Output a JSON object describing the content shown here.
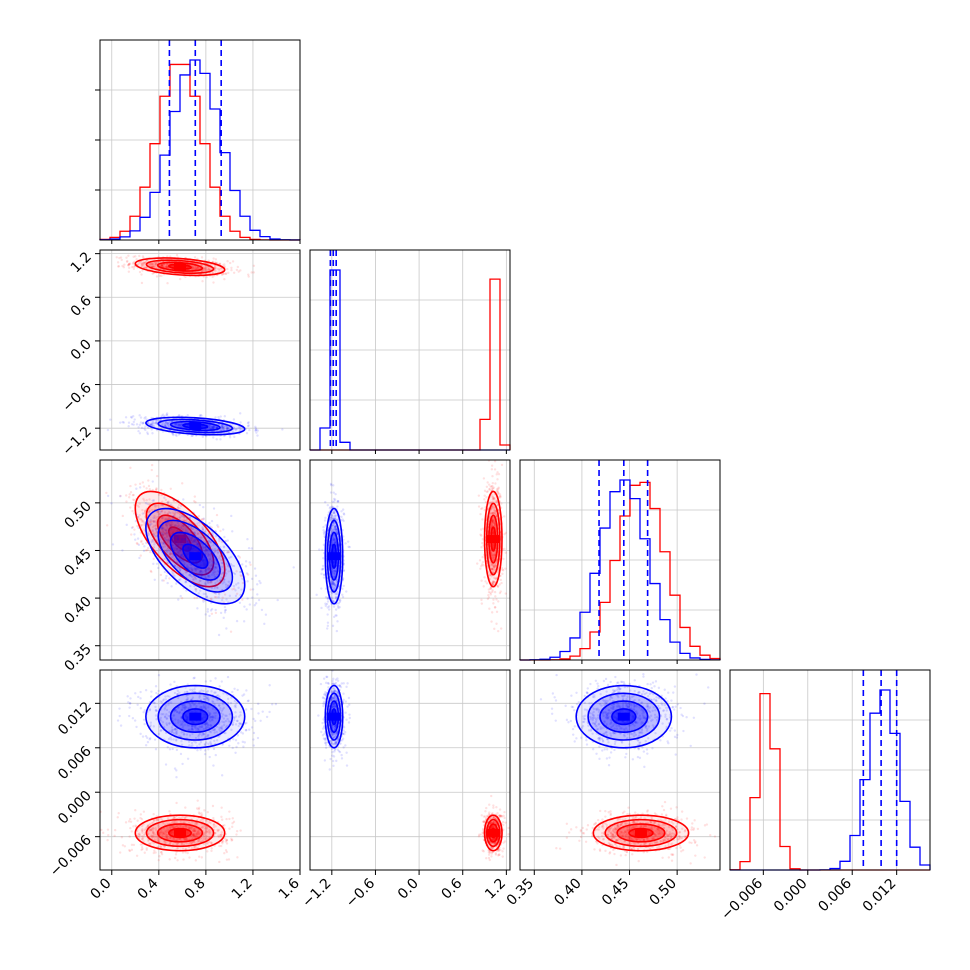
{
  "chart_data": {
    "type": "corner",
    "title": "",
    "params": [
      {
        "xlim": [
          -0.1,
          1.6
        ],
        "ticks": [
          0.0,
          0.4,
          0.8,
          1.2,
          1.6
        ],
        "tick_labels": [
          "0.0",
          "0.4",
          "0.8",
          "1.2",
          "1.6"
        ]
      },
      {
        "xlim": [
          -1.5,
          1.25
        ],
        "ticks": [
          -1.2,
          -0.6,
          0.0,
          0.6,
          1.2
        ],
        "tick_labels": [
          "−1.2",
          "−0.6",
          "0.0",
          "0.6",
          "1.2"
        ]
      },
      {
        "xlim": [
          0.335,
          0.545
        ],
        "ticks": [
          0.35,
          0.4,
          0.45,
          0.5
        ],
        "tick_labels": [
          "0.35",
          "0.40",
          "0.45",
          "0.50"
        ]
      },
      {
        "xlim": [
          -0.0105,
          0.0165
        ],
        "ticks": [
          -0.006,
          0.0,
          0.006,
          0.012
        ],
        "tick_labels": [
          "−0.006",
          "0.000",
          "0.006",
          "0.012"
        ]
      }
    ],
    "series": [
      {
        "color": "#ff0000",
        "means": [
          0.58,
          1.02,
          0.462,
          -0.0055
        ],
        "sds": [
          0.19,
          0.06,
          0.025,
          0.0012
        ],
        "correlations": {
          "0-1": -0.35,
          "0-2": -0.65
        },
        "quantiles": null
      },
      {
        "color": "#0000ff",
        "means": [
          0.71,
          -1.17,
          0.444,
          0.0102
        ],
        "sds": [
          0.21,
          0.06,
          0.025,
          0.0021
        ],
        "correlations": {
          "0-1": -0.35,
          "0-2": -0.6
        },
        "quantiles": [
          [
            0.49,
            0.71,
            0.93
          ],
          [
            -1.22,
            -1.18,
            -1.14
          ],
          [
            0.418,
            0.444,
            0.469
          ],
          [
            0.0075,
            0.0099,
            0.012
          ]
        ]
      }
    ],
    "grid": true
  }
}
